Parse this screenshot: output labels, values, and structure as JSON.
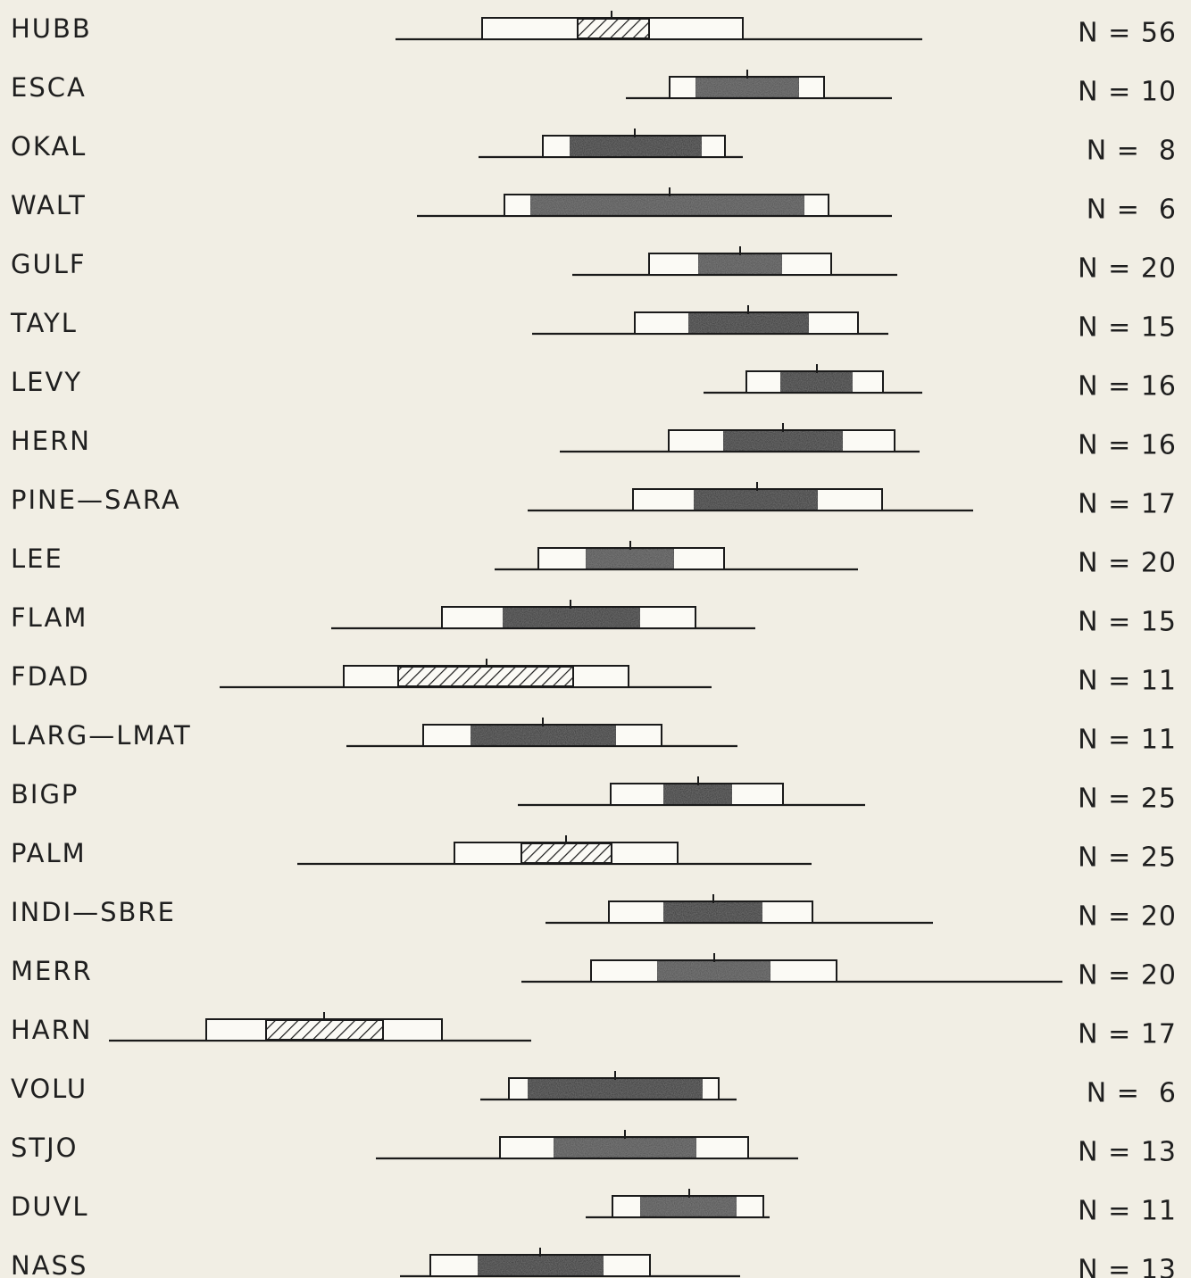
{
  "chart_data": {
    "type": "box-range",
    "title": "",
    "xlabel": "",
    "ylabel": "",
    "xlim": [
      0,
      1334
    ],
    "grid": false,
    "legend": "none",
    "colors": {
      "background": "#f1eee4",
      "outer_box": "#fbfaf5",
      "line": "#1a1a1a",
      "solid_fill_dark": "#2a2a2a",
      "solid_fill_medium": "#4a4a4a",
      "hatch": "#1a1a1a"
    },
    "rows": [
      {
        "label": "HUBB",
        "n": "N = 56",
        "range": [
          443,
          1033
        ],
        "box": [
          540,
          832
        ],
        "inner": [
          647,
          727
        ],
        "mean": 685,
        "fill": "hatched"
      },
      {
        "label": "ESCA",
        "n": "N = 10",
        "range": [
          701,
          999
        ],
        "box": [
          750,
          923
        ],
        "inner": [
          779,
          895
        ],
        "mean": 837,
        "fill": "medium"
      },
      {
        "label": "OKAL",
        "n": "N =  8",
        "range": [
          536,
          832
        ],
        "box": [
          608,
          812
        ],
        "inner": [
          638,
          786
        ],
        "mean": 711,
        "fill": "dark"
      },
      {
        "label": "WALT",
        "n": "N =  6",
        "range": [
          467,
          999
        ],
        "box": [
          565,
          928
        ],
        "inner": [
          594,
          901
        ],
        "mean": 750,
        "fill": "medium"
      },
      {
        "label": "GULF",
        "n": "N = 20",
        "range": [
          641,
          1005
        ],
        "box": [
          727,
          931
        ],
        "inner": [
          782,
          876
        ],
        "mean": 829,
        "fill": "medium"
      },
      {
        "label": "TAYL",
        "n": "N = 15",
        "range": [
          596,
          995
        ],
        "box": [
          711,
          961
        ],
        "inner": [
          771,
          906
        ],
        "mean": 838,
        "fill": "dark"
      },
      {
        "label": "LEVY",
        "n": "N = 16",
        "range": [
          788,
          1033
        ],
        "box": [
          836,
          989
        ],
        "inner": [
          874,
          955
        ],
        "mean": 915,
        "fill": "dark"
      },
      {
        "label": "HERN",
        "n": "N = 16",
        "range": [
          627,
          1030
        ],
        "box": [
          749,
          1002
        ],
        "inner": [
          810,
          944
        ],
        "mean": 877,
        "fill": "dark"
      },
      {
        "label": "PINE—SARA",
        "n": "N = 17",
        "range": [
          591,
          1090
        ],
        "box": [
          709,
          988
        ],
        "inner": [
          777,
          916
        ],
        "mean": 848,
        "fill": "dark"
      },
      {
        "label": "LEE",
        "n": "N = 20",
        "range": [
          554,
          961
        ],
        "box": [
          603,
          811
        ],
        "inner": [
          656,
          755
        ],
        "mean": 706,
        "fill": "medium"
      },
      {
        "label": "FLAM",
        "n": "N = 15",
        "range": [
          371,
          846
        ],
        "box": [
          495,
          779
        ],
        "inner": [
          563,
          717
        ],
        "mean": 639,
        "fill": "dark"
      },
      {
        "label": "FDAD",
        "n": "N = 11",
        "range": [
          246,
          797
        ],
        "box": [
          385,
          704
        ],
        "inner": [
          446,
          642
        ],
        "mean": 545,
        "fill": "hatched"
      },
      {
        "label": "LARG—LMAT",
        "n": "N = 11",
        "range": [
          388,
          826
        ],
        "box": [
          474,
          741
        ],
        "inner": [
          527,
          690
        ],
        "mean": 608,
        "fill": "dark"
      },
      {
        "label": "BIGP",
        "n": "N = 25",
        "range": [
          580,
          969
        ],
        "box": [
          684,
          877
        ],
        "inner": [
          743,
          820
        ],
        "mean": 782,
        "fill": "dark"
      },
      {
        "label": "PALM",
        "n": "N = 25",
        "range": [
          333,
          909
        ],
        "box": [
          509,
          759
        ],
        "inner": [
          584,
          685
        ],
        "mean": 634,
        "fill": "hatched"
      },
      {
        "label": "INDI—SBRE",
        "n": "N = 20",
        "range": [
          611,
          1045
        ],
        "box": [
          682,
          910
        ],
        "inner": [
          743,
          854
        ],
        "mean": 799,
        "fill": "dark"
      },
      {
        "label": "MERR",
        "n": "N = 20",
        "range": [
          584,
          1190
        ],
        "box": [
          662,
          937
        ],
        "inner": [
          736,
          863
        ],
        "mean": 800,
        "fill": "medium"
      },
      {
        "label": "HARN",
        "n": "N = 17",
        "range": [
          122,
          595
        ],
        "box": [
          231,
          495
        ],
        "inner": [
          298,
          429
        ],
        "mean": 363,
        "fill": "hatched"
      },
      {
        "label": "VOLU",
        "n": "N =  6",
        "range": [
          538,
          825
        ],
        "box": [
          570,
          805
        ],
        "inner": [
          591,
          787
        ],
        "mean": 689,
        "fill": "dark"
      },
      {
        "label": "STJO",
        "n": "N = 13",
        "range": [
          421,
          894
        ],
        "box": [
          560,
          838
        ],
        "inner": [
          620,
          780
        ],
        "mean": 700,
        "fill": "medium"
      },
      {
        "label": "DUVL",
        "n": "N = 11",
        "range": [
          656,
          862
        ],
        "box": [
          686,
          855
        ],
        "inner": [
          717,
          825
        ],
        "mean": 772,
        "fill": "medium"
      },
      {
        "label": "NASS",
        "n": "N = 13",
        "range": [
          448,
          829
        ],
        "box": [
          482,
          728
        ],
        "inner": [
          535,
          676
        ],
        "mean": 605,
        "fill": "dark"
      }
    ]
  }
}
